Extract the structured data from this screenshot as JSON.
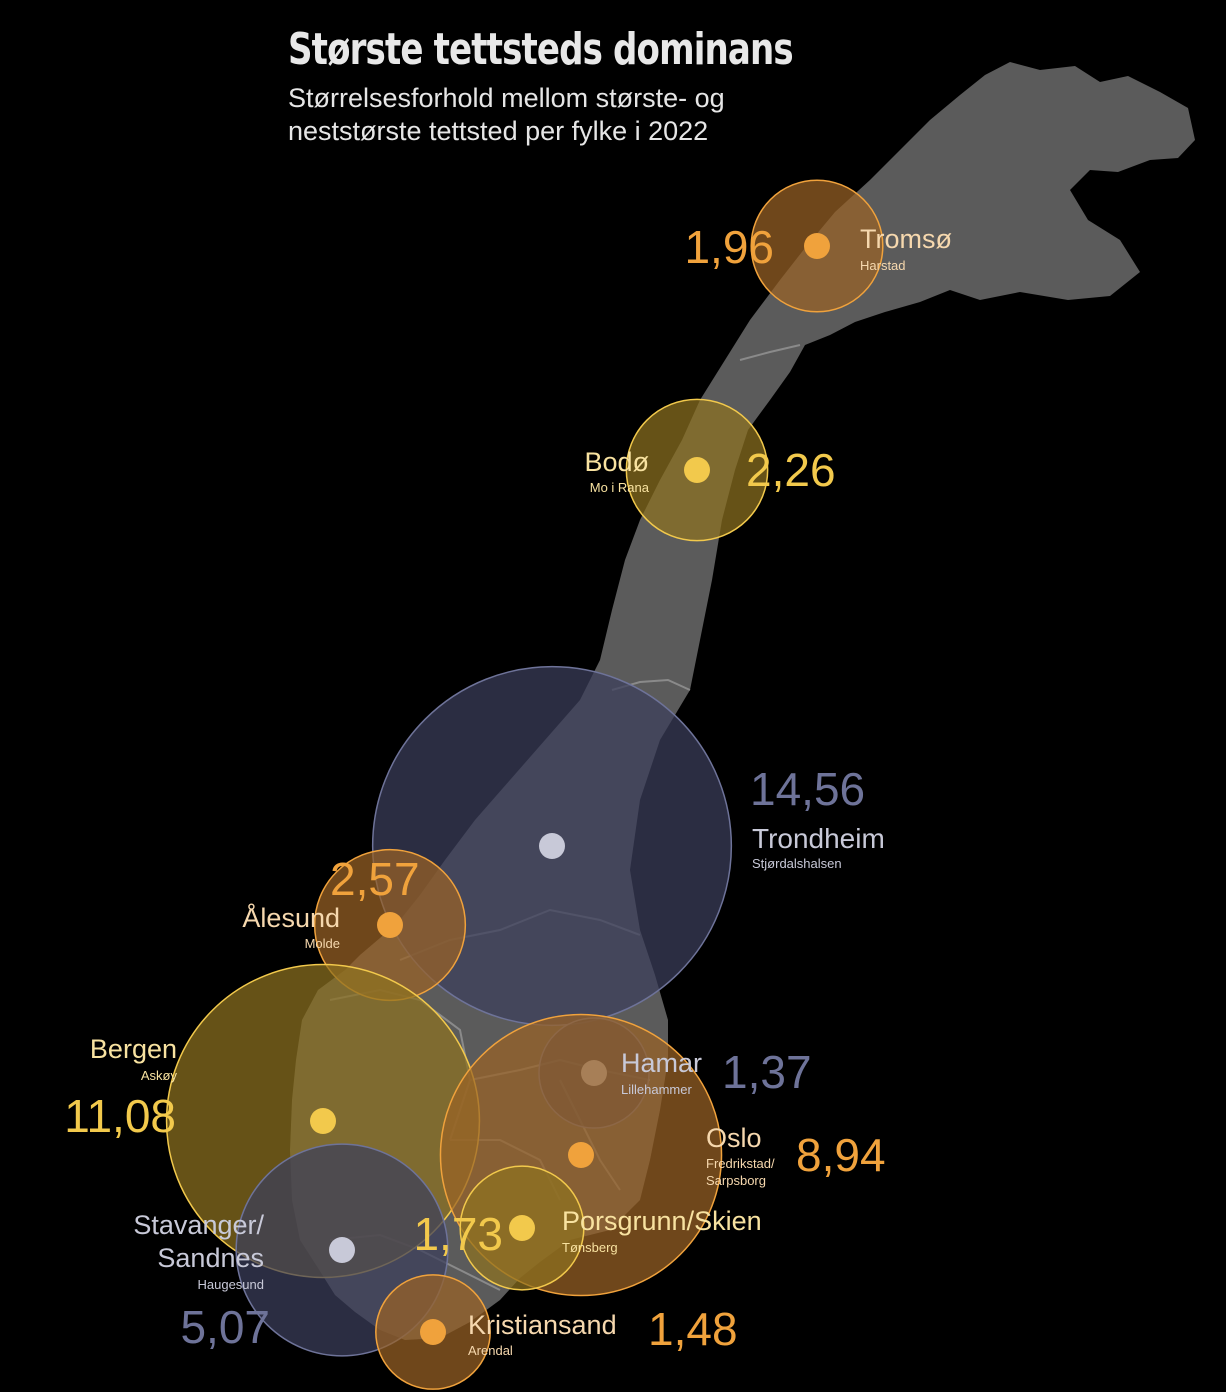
{
  "title": "Største tettsteds dominans",
  "subtitle": "Størrelsesforhold mellom største- og neststørste tettsted per fylke i 2022",
  "colors": {
    "background": "#000000",
    "land": "#5b5b5b",
    "border": "#9a9a9a",
    "yellow": "#f2c94c",
    "yellow_fill": "#8d7220",
    "orange": "#f0a23c",
    "orange_fill": "#9a6326",
    "blue": "#6e7399",
    "blue_fill": "#3c3f5c",
    "dot_light": "#c8c9d8"
  },
  "counties": [
    {
      "id": "tromso",
      "city": "Tromsø",
      "second": "Harstad",
      "ratio": "1,96",
      "value": 1.96,
      "color": "orange"
    },
    {
      "id": "bodo",
      "city": "Bodø",
      "second": "Mo i Rana",
      "ratio": "2,26",
      "value": 2.26,
      "color": "yellow"
    },
    {
      "id": "trondheim",
      "city": "Trondheim",
      "second": "Stjørdalshalsen",
      "ratio": "14,56",
      "value": 14.56,
      "color": "blue"
    },
    {
      "id": "alesund",
      "city": "Ålesund",
      "second": "Molde",
      "ratio": "2,57",
      "value": 2.57,
      "color": "orange"
    },
    {
      "id": "bergen",
      "city": "Bergen",
      "second": "Askøy",
      "ratio": "11,08",
      "value": 11.08,
      "color": "yellow"
    },
    {
      "id": "hamar",
      "city": "Hamar",
      "second": "Lillehammer",
      "ratio": "1,37",
      "value": 1.37,
      "color": "blue"
    },
    {
      "id": "oslo",
      "city": "Oslo",
      "second": "Fredrikstad/ Sarpsborg",
      "ratio": "8,94",
      "value": 8.94,
      "color": "orange"
    },
    {
      "id": "porsgrunn",
      "city": "Porsgrunn/Skien",
      "second": "Tønsberg",
      "ratio": "1,73",
      "value": 1.73,
      "color": "yellow"
    },
    {
      "id": "stavanger",
      "city": "Stavanger/ Sandnes",
      "second": "Haugesund",
      "ratio": "5,07",
      "value": 5.07,
      "color": "blue"
    },
    {
      "id": "kristiansand",
      "city": "Kristiansand",
      "second": "Arendal",
      "ratio": "1,48",
      "value": 1.48,
      "color": "orange"
    }
  ]
}
